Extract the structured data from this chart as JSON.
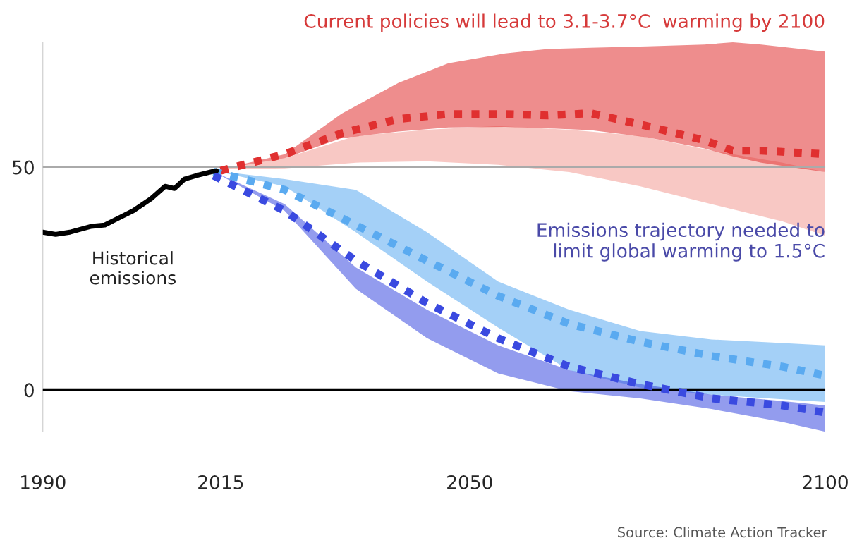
{
  "chart_data": {
    "type": "line",
    "title": "Current policies will lead to 3.1-3.7°C  warming by 2100",
    "annotations": [
      "Historical\nemissions",
      "Emissions trajectory needed to\nlimit global warming to 1.5°C",
      "Source: Climate Action Tracker"
    ],
    "xlim": [
      1990,
      2100
    ],
    "xticks": [
      1990,
      2015,
      2050,
      2100
    ],
    "ylim": [
      -9.4,
      78
    ],
    "yticks": [
      0,
      50
    ],
    "grid": false,
    "legend": false,
    "ref_lines": [
      {
        "axis": "y",
        "value": 50,
        "color": "#aaaaaa"
      },
      {
        "axis": "y",
        "value": 0,
        "color": "#000000"
      }
    ],
    "series": [
      {
        "color": "#f29b94",
        "x": [
          2015,
          2024,
          2034,
          2044,
          2054,
          2064,
          2074,
          2084,
          2094,
          2100
        ],
        "values": [
          null,
          null,
          null,
          null,
          null,
          null,
          null,
          null,
          null,
          null
        ],
        "lower": [
          49.5,
          49.7,
          51,
          51.3,
          50.5,
          48.9,
          45.7,
          41.7,
          37.8,
          34.6
        ],
        "upper": [
          49.5,
          52,
          57,
          58.4,
          59.2,
          58.4,
          57,
          53.7,
          51,
          48.9
        ]
      },
      {
        "line_style": "dotted",
        "color": "#e03030",
        "x": [
          2015,
          2024,
          2032,
          2040,
          2047,
          2055,
          2061,
          2067,
          2075,
          2083,
          2087,
          2091,
          2100
        ],
        "values": [
          49.2,
          52.9,
          57.6,
          60.8,
          61.9,
          61.9,
          61.6,
          62.1,
          59.2,
          56,
          53.7,
          53.7,
          52.9
        ],
        "lower": [
          49.5,
          52,
          56.5,
          58,
          58.9,
          59,
          58.7,
          58.3,
          56.7,
          54.2,
          52.4,
          51,
          48.9
        ],
        "upper": [
          49.5,
          52.9,
          62,
          68.9,
          73.3,
          75.5,
          76.5,
          76.8,
          77.1,
          77.5,
          78,
          77.5,
          75.9
        ]
      },
      {
        "line_style": "dotted",
        "color": "#5aaaf0",
        "x": [
          2014,
          2024,
          2034,
          2044,
          2054,
          2064,
          2074,
          2084,
          2094,
          2100
        ],
        "values": [
          49,
          44.9,
          37,
          29,
          21.1,
          14.8,
          10.8,
          7.6,
          5.2,
          3.2
        ],
        "lower": [
          49.2,
          45.7,
          35.4,
          24.3,
          14,
          4.4,
          0.5,
          -1.1,
          -2.1,
          -2.7
        ],
        "upper": [
          49.2,
          47.3,
          44.9,
          35.4,
          24.3,
          18,
          13.2,
          11.3,
          10.5,
          10
        ]
      },
      {
        "line_style": "dotted",
        "color": "#3a4ae0",
        "x": [
          2014,
          2024,
          2034,
          2044,
          2054,
          2064,
          2074,
          2084,
          2094,
          2100
        ],
        "values": [
          48.1,
          40.2,
          29,
          19.5,
          11.6,
          5.2,
          1.3,
          -1.9,
          -3.5,
          -5.1
        ],
        "lower": [
          49,
          40.2,
          22.7,
          11.6,
          3.7,
          -0.3,
          -1.9,
          -4.3,
          -7.2,
          -9.4
        ],
        "upper": [
          49,
          41.7,
          27.5,
          18,
          10,
          4.4,
          1.3,
          -1.1,
          -2.5,
          -3.5
        ]
      },
      {
        "line_style": "solid",
        "color": "#000000",
        "x": [
          1990,
          1991.8,
          1993.8,
          1996.8,
          1998.7,
          2000.7,
          2002.7,
          2005.2,
          2007.2,
          2008.5,
          2009.9,
          2011.6,
          2013.6,
          2014.4
        ],
        "values": [
          35.4,
          34.9,
          35.4,
          36.7,
          37,
          38.6,
          40.2,
          42.9,
          45.7,
          45.2,
          47.3,
          48.1,
          48.9,
          49.2
        ]
      }
    ]
  }
}
